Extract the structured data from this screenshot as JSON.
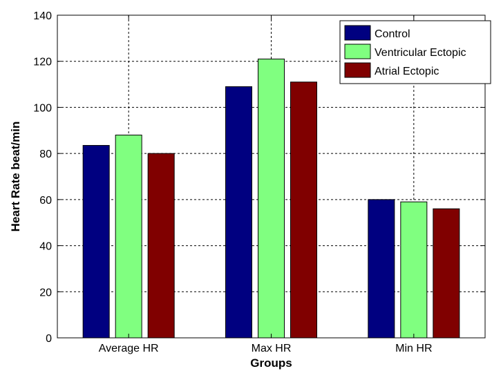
{
  "chart_data": {
    "type": "bar",
    "title": "",
    "xlabel": "Groups",
    "ylabel": "Heart Rate beat/min",
    "categories": [
      "Average HR",
      "Max HR",
      "Min HR"
    ],
    "ylim": [
      0,
      140
    ],
    "yticks": [
      0,
      20,
      40,
      60,
      80,
      100,
      120,
      140
    ],
    "grid": true,
    "grid_style": "dotted",
    "legend_position": "top-right",
    "series": [
      {
        "name": "Control",
        "color": "#000080",
        "values": [
          83.5,
          109,
          60
        ]
      },
      {
        "name": "Ventricular Ectopic",
        "color": "#80ff80",
        "values": [
          88,
          121,
          59
        ]
      },
      {
        "name": "Atrial Ectopic",
        "color": "#800000",
        "values": [
          80,
          111,
          56
        ]
      }
    ]
  }
}
